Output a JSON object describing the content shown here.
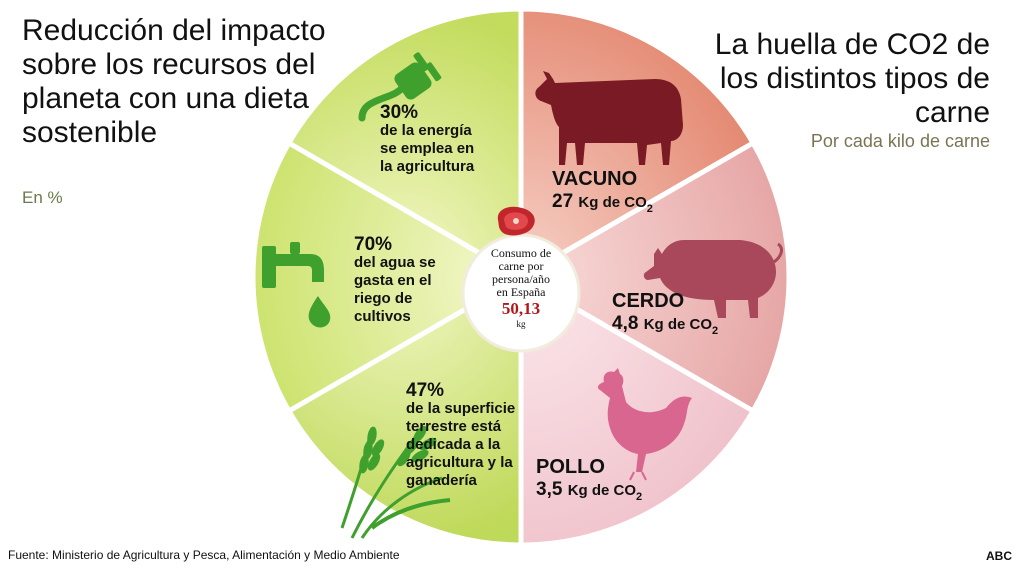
{
  "header": {
    "left_title": "Reducción del impacto sobre los recursos del planeta con una dieta sostenible",
    "left_subtitle": "En %",
    "right_title": "La huella de CO2 de los distintos tipos de carne",
    "right_subtitle": "Por cada kilo de carne"
  },
  "resources": [
    {
      "percent": "30%",
      "text": "de la energía se emplea en la agricultura",
      "icon": "plug-icon"
    },
    {
      "percent": "70%",
      "text": "del agua se gasta en el riego de cultivos",
      "icon": "water-tap-icon"
    },
    {
      "percent": "47%",
      "text": "de la superficie terrestre está dedicada a la agricultura y la ganadería",
      "icon": "wheat-icon"
    }
  ],
  "meats": [
    {
      "name": "VACUNO",
      "value": "27",
      "unit": "Kg de CO",
      "sub": "2",
      "icon": "cow-icon",
      "color": "#7a1a24"
    },
    {
      "name": "CERDO",
      "value": "4,8",
      "unit": "Kg de CO",
      "sub": "2",
      "icon": "pig-icon",
      "color": "#a8485a"
    },
    {
      "name": "POLLO",
      "value": "3,5",
      "unit": "Kg de CO",
      "sub": "2",
      "icon": "chicken-icon",
      "color": "#d9668f"
    }
  ],
  "center": {
    "label_line1": "Consumo de",
    "label_line2": "carne por",
    "label_line3": "persona/año",
    "label_line4": "en España",
    "value": "50,13",
    "unit": "kg"
  },
  "footer": {
    "source": "Fuente: Ministerio de Agricultura y Pesca, Alimentación y Medio Ambiente",
    "credit": "ABC"
  },
  "colors": {
    "energy_segment": "#d3e57a",
    "water_segment": "#dcea8e",
    "land_segment": "#cfe27a",
    "beef_segment": "#e9a08e",
    "pork_segment": "#eebdbb",
    "chicken_segment": "#f5d3d8",
    "icon_green": "#3fa02e"
  }
}
